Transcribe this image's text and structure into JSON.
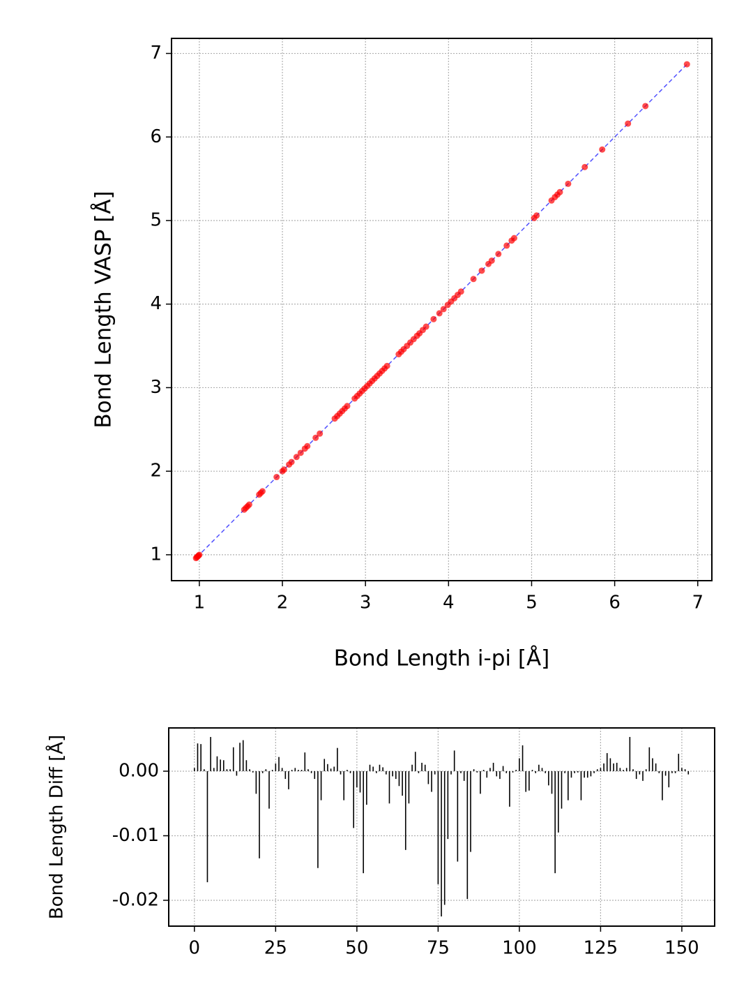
{
  "chart_data": [
    {
      "type": "scatter",
      "xlabel": "Bond Length i-pi [Å]",
      "ylabel": "Bond Length VASP [Å]",
      "xlim": [
        0.665,
        7.17
      ],
      "ylim": [
        0.69,
        7.18
      ],
      "xticks": [
        1,
        2,
        3,
        4,
        5,
        6,
        7
      ],
      "yticks": [
        1,
        2,
        3,
        4,
        5,
        6,
        7
      ],
      "grid": true,
      "color": "#ff0000",
      "x": [
        0.96,
        0.97,
        0.98,
        0.99,
        1.0,
        1.54,
        1.56,
        1.58,
        1.6,
        1.72,
        1.74,
        1.76,
        1.93,
        2.0,
        2.02,
        2.08,
        2.11,
        2.17,
        2.22,
        2.27,
        2.3,
        2.4,
        2.45,
        2.63,
        2.66,
        2.69,
        2.72,
        2.75,
        2.78,
        2.87,
        2.9,
        2.93,
        2.96,
        2.99,
        3.02,
        3.05,
        3.08,
        3.11,
        3.14,
        3.17,
        3.2,
        3.23,
        3.26,
        3.4,
        3.43,
        3.46,
        3.5,
        3.54,
        3.58,
        3.62,
        3.65,
        3.69,
        3.73,
        3.82,
        3.89,
        3.94,
        3.99,
        4.03,
        4.07,
        4.11,
        4.15,
        4.3,
        4.4,
        4.48,
        4.52,
        4.6,
        4.7,
        4.76,
        4.79,
        5.03,
        5.06,
        5.24,
        5.28,
        5.31,
        5.34,
        5.44,
        5.64,
        5.85,
        6.16,
        6.37,
        6.87
      ],
      "values": [
        0.96,
        0.97,
        0.98,
        0.99,
        1.0,
        1.54,
        1.56,
        1.58,
        1.6,
        1.72,
        1.74,
        1.76,
        1.93,
        2.0,
        2.02,
        2.08,
        2.11,
        2.17,
        2.22,
        2.27,
        2.3,
        2.4,
        2.45,
        2.63,
        2.66,
        2.69,
        2.72,
        2.75,
        2.78,
        2.87,
        2.9,
        2.93,
        2.96,
        2.99,
        3.02,
        3.05,
        3.08,
        3.11,
        3.14,
        3.17,
        3.2,
        3.23,
        3.26,
        3.4,
        3.43,
        3.46,
        3.5,
        3.54,
        3.58,
        3.62,
        3.65,
        3.69,
        3.73,
        3.82,
        3.89,
        3.94,
        3.99,
        4.03,
        4.07,
        4.11,
        4.15,
        4.3,
        4.4,
        4.48,
        4.52,
        4.6,
        4.7,
        4.76,
        4.79,
        5.03,
        5.06,
        5.24,
        5.28,
        5.31,
        5.34,
        5.44,
        5.64,
        5.85,
        6.16,
        6.37,
        6.87
      ],
      "reference_line": {
        "x": [
          0.97,
          6.87
        ],
        "values": [
          0.97,
          6.87
        ],
        "color": "#3333ff"
      }
    },
    {
      "type": "bar",
      "ylabel": "Bond Length Diff [Å]",
      "xlim": [
        -7.9,
        160.1
      ],
      "ylim": [
        -0.024,
        0.0067
      ],
      "xticks": [
        0,
        25,
        50,
        75,
        100,
        125,
        150
      ],
      "yticks": [
        {
          "value": 0,
          "label": "0.00"
        },
        {
          "value": -0.01,
          "label": "-0.01"
        },
        {
          "value": -0.02,
          "label": "-0.02"
        }
      ],
      "grid": true,
      "color": "#000000",
      "x": [
        0,
        1,
        2,
        3,
        4,
        5,
        6,
        7,
        8,
        9,
        10,
        11,
        12,
        13,
        14,
        15,
        16,
        17,
        18,
        19,
        20,
        21,
        22,
        23,
        24,
        25,
        26,
        27,
        28,
        29,
        30,
        31,
        32,
        33,
        34,
        35,
        36,
        37,
        38,
        39,
        40,
        41,
        42,
        43,
        44,
        45,
        46,
        47,
        48,
        49,
        50,
        51,
        52,
        53,
        54,
        55,
        56,
        57,
        58,
        59,
        60,
        61,
        62,
        63,
        64,
        65,
        66,
        67,
        68,
        69,
        70,
        71,
        72,
        73,
        74,
        75,
        76,
        77,
        78,
        79,
        80,
        81,
        82,
        83,
        84,
        85,
        86,
        87,
        88,
        89,
        90,
        91,
        92,
        93,
        94,
        95,
        96,
        97,
        98,
        99,
        100,
        101,
        102,
        103,
        104,
        105,
        106,
        107,
        108,
        109,
        110,
        111,
        112,
        113,
        114,
        115,
        116,
        117,
        118,
        119,
        120,
        121,
        122,
        123,
        124,
        125,
        126,
        127,
        128,
        129,
        130,
        131,
        132,
        133,
        134,
        135,
        136,
        137,
        138,
        139,
        140,
        141,
        142,
        143,
        144,
        145,
        146,
        147,
        148,
        149,
        150,
        151,
        152
      ],
      "values": [
        0.0005,
        0.0043,
        0.0042,
        0.0003,
        -0.0172,
        0.0053,
        0.0005,
        0.0023,
        0.0018,
        0.0017,
        0.0003,
        0.0003,
        0.0037,
        -0.0007,
        0.0044,
        0.0048,
        0.0017,
        0.0003,
        -0.0002,
        -0.0035,
        -0.0135,
        -0.0003,
        0.0003,
        -0.0058,
        0.0002,
        0.0012,
        0.0022,
        0.0005,
        -0.0012,
        -0.0028,
        0.0002,
        0.0005,
        0.0002,
        0.0002,
        0.0029,
        0.0003,
        -0.0003,
        -0.0012,
        -0.015,
        -0.0045,
        0.0019,
        0.0011,
        0.0004,
        0.0007,
        0.0036,
        -0.0005,
        -0.0045,
        0.0002,
        -0.0003,
        -0.0088,
        -0.0025,
        -0.0033,
        -0.0158,
        -0.0052,
        0.001,
        0.0007,
        -0.0003,
        0.001,
        0.0006,
        -0.0005,
        -0.005,
        -0.0008,
        -0.0012,
        -0.0023,
        -0.0038,
        -0.0122,
        -0.005,
        0.001,
        0.003,
        -0.0003,
        0.0013,
        0.001,
        -0.002,
        -0.0032,
        -0.0005,
        -0.0175,
        -0.0225,
        -0.0207,
        -0.0105,
        -0.0005,
        0.0032,
        -0.014,
        -0.0003,
        -0.0015,
        -0.0198,
        -0.0125,
        0.0003,
        -0.0002,
        -0.0035,
        0.0002,
        -0.001,
        0.0005,
        0.0013,
        -0.0008,
        -0.0012,
        0.0008,
        -0.0003,
        -0.0055,
        -0.0002,
        0.0002,
        0.002,
        0.004,
        -0.0032,
        -0.003,
        0.0002,
        -0.0003,
        0.001,
        0.0005,
        -0.0003,
        -0.0022,
        -0.0035,
        -0.0158,
        -0.0095,
        -0.0058,
        -0.0003,
        -0.0045,
        -0.001,
        -0.0003,
        -0.0002,
        -0.0045,
        -0.001,
        -0.001,
        -0.0008,
        -0.0003,
        0.0003,
        0.0005,
        0.0012,
        0.0028,
        0.002,
        0.0012,
        0.0013,
        0.0005,
        0.0002,
        0.0005,
        0.0053,
        0.0003,
        -0.0012,
        -0.0005,
        -0.0015,
        0.0003,
        0.0037,
        0.002,
        0.0012,
        -0.0003,
        -0.0045,
        -0.0007,
        -0.0025,
        -0.0003,
        -0.0003,
        0.0027,
        0.0005,
        0.0003,
        -0.0005
      ]
    }
  ]
}
